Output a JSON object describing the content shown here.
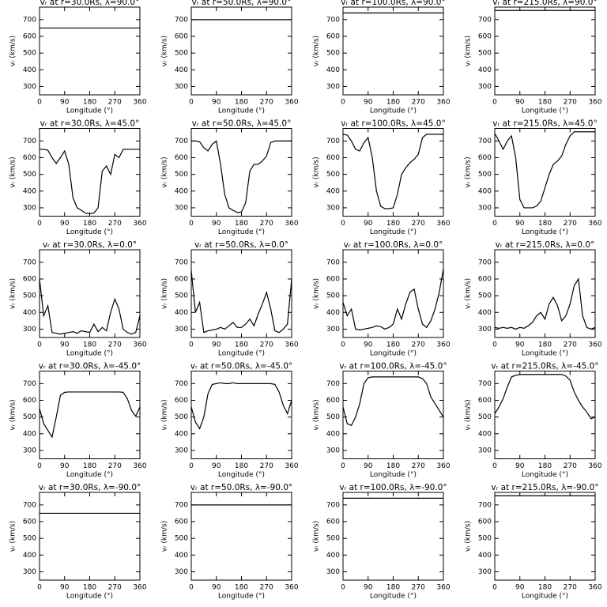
{
  "chart_data": [
    {
      "type": "line",
      "title": "vᵣ at r=30.0Rs, λ=90.0°",
      "x_label": "Longitude (°)",
      "y_label": "vᵣ (km/s)",
      "x": [
        0,
        360
      ],
      "values": [
        650,
        650
      ],
      "color": "#000000",
      "xlim": [
        0,
        360
      ],
      "ylim": [
        250,
        775
      ],
      "xticks": [
        0,
        90,
        180,
        270,
        360
      ],
      "yticks": [
        300,
        400,
        500,
        600,
        700
      ]
    },
    {
      "type": "line",
      "title": "vᵣ at r=50.0Rs, λ=90.0°",
      "x_label": "Longitude (°)",
      "y_label": "vᵣ (km/s)",
      "x": [
        0,
        360
      ],
      "values": [
        700,
        700
      ],
      "color": "#000000",
      "xlim": [
        0,
        360
      ],
      "ylim": [
        250,
        775
      ],
      "xticks": [
        0,
        90,
        180,
        270,
        360
      ],
      "yticks": [
        300,
        400,
        500,
        600,
        700
      ]
    },
    {
      "type": "line",
      "title": "vᵣ at r=100.0Rs, λ=90.0°",
      "x_label": "Longitude (°)",
      "y_label": "vᵣ (km/s)",
      "x": [
        0,
        360
      ],
      "values": [
        740,
        740
      ],
      "color": "#000000",
      "xlim": [
        0,
        360
      ],
      "ylim": [
        250,
        775
      ],
      "xticks": [
        0,
        90,
        180,
        270,
        360
      ],
      "yticks": [
        300,
        400,
        500,
        600,
        700
      ]
    },
    {
      "type": "line",
      "title": "vᵣ at r=215.0Rs, λ=90.0°",
      "x_label": "Longitude (°)",
      "y_label": "vᵣ (km/s)",
      "x": [
        0,
        360
      ],
      "values": [
        755,
        755
      ],
      "color": "#000000",
      "xlim": [
        0,
        360
      ],
      "ylim": [
        250,
        775
      ],
      "xticks": [
        0,
        90,
        180,
        270,
        360
      ],
      "yticks": [
        300,
        400,
        500,
        600,
        700
      ]
    },
    {
      "type": "line",
      "title": "vᵣ at r=30.0Rs, λ=45.0°",
      "x_label": "Longitude (°)",
      "y_label": "vᵣ (km/s)",
      "x": [
        0,
        15,
        30,
        45,
        60,
        75,
        90,
        105,
        120,
        135,
        150,
        165,
        180,
        195,
        210,
        225,
        240,
        255,
        270,
        285,
        300,
        315,
        330,
        345,
        360
      ],
      "values": [
        650,
        650,
        645,
        600,
        565,
        600,
        640,
        560,
        360,
        300,
        285,
        268,
        265,
        268,
        300,
        520,
        550,
        500,
        620,
        600,
        650,
        650,
        650,
        650,
        650
      ],
      "color": "#000000",
      "xlim": [
        0,
        360
      ],
      "ylim": [
        250,
        775
      ],
      "xticks": [
        0,
        90,
        180,
        270,
        360
      ],
      "yticks": [
        300,
        400,
        500,
        600,
        700
      ]
    },
    {
      "type": "line",
      "title": "vᵣ at r=50.0Rs, λ=45.0°",
      "x_label": "Longitude (°)",
      "y_label": "vᵣ (km/s)",
      "x": [
        0,
        15,
        30,
        45,
        60,
        75,
        90,
        105,
        120,
        135,
        150,
        165,
        180,
        195,
        210,
        225,
        240,
        255,
        270,
        285,
        300,
        315,
        330,
        345,
        360
      ],
      "values": [
        700,
        700,
        695,
        660,
        640,
        680,
        700,
        560,
        380,
        300,
        285,
        272,
        275,
        330,
        520,
        560,
        560,
        580,
        610,
        690,
        700,
        700,
        700,
        700,
        700
      ],
      "color": "#000000",
      "xlim": [
        0,
        360
      ],
      "ylim": [
        250,
        775
      ],
      "xticks": [
        0,
        90,
        180,
        270,
        360
      ],
      "yticks": [
        300,
        400,
        500,
        600,
        700
      ]
    },
    {
      "type": "line",
      "title": "vᵣ at r=100.0Rs, λ=45.0°",
      "x_label": "Longitude (°)",
      "y_label": "vᵣ (km/s)",
      "x": [
        0,
        15,
        30,
        45,
        60,
        75,
        90,
        105,
        120,
        135,
        150,
        165,
        180,
        195,
        210,
        225,
        240,
        255,
        270,
        285,
        300,
        315,
        330,
        345,
        360
      ],
      "values": [
        740,
        735,
        700,
        650,
        640,
        690,
        720,
        600,
        400,
        310,
        295,
        295,
        300,
        380,
        500,
        540,
        570,
        590,
        620,
        720,
        740,
        740,
        740,
        740,
        740
      ],
      "color": "#000000",
      "xlim": [
        0,
        360
      ],
      "ylim": [
        250,
        775
      ],
      "xticks": [
        0,
        90,
        180,
        270,
        360
      ],
      "yticks": [
        300,
        400,
        500,
        600,
        700
      ]
    },
    {
      "type": "line",
      "title": "vᵣ at r=215.0Rs, λ=45.0°",
      "x_label": "Longitude (°)",
      "y_label": "vᵣ (km/s)",
      "x": [
        0,
        15,
        30,
        45,
        60,
        75,
        90,
        105,
        120,
        135,
        150,
        165,
        180,
        195,
        210,
        225,
        240,
        255,
        270,
        285,
        300,
        315,
        330,
        345,
        360
      ],
      "values": [
        745,
        700,
        650,
        700,
        730,
        600,
        350,
        300,
        300,
        300,
        310,
        340,
        420,
        500,
        560,
        580,
        610,
        680,
        730,
        755,
        755,
        755,
        755,
        755,
        755
      ],
      "color": "#000000",
      "xlim": [
        0,
        360
      ],
      "ylim": [
        250,
        775
      ],
      "xticks": [
        0,
        90,
        180,
        270,
        360
      ],
      "yticks": [
        300,
        400,
        500,
        600,
        700
      ]
    },
    {
      "type": "line",
      "title": "vᵣ at r=30.0Rs, λ=0.0°",
      "x_label": "Longitude (°)",
      "y_label": "vᵣ (km/s)",
      "x": [
        0,
        15,
        30,
        45,
        60,
        75,
        90,
        105,
        120,
        135,
        150,
        165,
        180,
        195,
        210,
        225,
        240,
        255,
        270,
        285,
        300,
        315,
        330,
        345,
        360
      ],
      "values": [
        600,
        380,
        440,
        280,
        275,
        270,
        275,
        280,
        285,
        275,
        290,
        285,
        280,
        330,
        285,
        310,
        290,
        400,
        480,
        420,
        300,
        280,
        270,
        280,
        380
      ],
      "color": "#000000",
      "xlim": [
        0,
        360
      ],
      "ylim": [
        250,
        775
      ],
      "xticks": [
        0,
        90,
        180,
        270,
        360
      ],
      "yticks": [
        300,
        400,
        500,
        600,
        700
      ]
    },
    {
      "type": "line",
      "title": "vᵣ at r=50.0Rs, λ=0.0°",
      "x_label": "Longitude (°)",
      "y_label": "vᵣ (km/s)",
      "x": [
        0,
        15,
        30,
        45,
        60,
        75,
        90,
        105,
        120,
        135,
        150,
        165,
        180,
        195,
        210,
        225,
        240,
        255,
        270,
        285,
        300,
        315,
        330,
        345,
        360
      ],
      "values": [
        650,
        400,
        460,
        280,
        290,
        295,
        300,
        310,
        300,
        320,
        340,
        310,
        310,
        330,
        360,
        320,
        390,
        450,
        520,
        420,
        290,
        280,
        300,
        330,
        600
      ],
      "color": "#000000",
      "xlim": [
        0,
        360
      ],
      "ylim": [
        250,
        775
      ],
      "xticks": [
        0,
        90,
        180,
        270,
        360
      ],
      "yticks": [
        300,
        400,
        500,
        600,
        700
      ]
    },
    {
      "type": "line",
      "title": "vᵣ at r=100.0Rs, λ=0.0°",
      "x_label": "Longitude (°)",
      "y_label": "vᵣ (km/s)",
      "x": [
        0,
        15,
        30,
        45,
        60,
        75,
        90,
        105,
        120,
        135,
        150,
        165,
        180,
        195,
        210,
        225,
        240,
        255,
        270,
        285,
        300,
        315,
        330,
        345,
        360
      ],
      "values": [
        460,
        380,
        420,
        300,
        295,
        300,
        305,
        310,
        320,
        315,
        300,
        310,
        330,
        420,
        360,
        450,
        520,
        540,
        420,
        330,
        310,
        350,
        420,
        520,
        660
      ],
      "color": "#000000",
      "xlim": [
        0,
        360
      ],
      "ylim": [
        250,
        775
      ],
      "xticks": [
        0,
        90,
        180,
        270,
        360
      ],
      "yticks": [
        300,
        400,
        500,
        600,
        700
      ]
    },
    {
      "type": "line",
      "title": "vᵣ at r=215.0Rs, λ=0.0°",
      "x_label": "Longitude (°)",
      "y_label": "vᵣ (km/s)",
      "x": [
        0,
        15,
        30,
        45,
        60,
        75,
        90,
        105,
        120,
        135,
        150,
        165,
        180,
        195,
        210,
        225,
        240,
        255,
        270,
        285,
        300,
        315,
        330,
        345,
        360
      ],
      "values": [
        310,
        305,
        310,
        305,
        310,
        300,
        310,
        305,
        320,
        340,
        380,
        400,
        360,
        450,
        490,
        440,
        350,
        380,
        450,
        560,
        600,
        380,
        310,
        300,
        310
      ],
      "color": "#000000",
      "xlim": [
        0,
        360
      ],
      "ylim": [
        250,
        775
      ],
      "xticks": [
        0,
        90,
        180,
        270,
        360
      ],
      "yticks": [
        300,
        400,
        500,
        600,
        700
      ]
    },
    {
      "type": "line",
      "title": "vᵣ at r=30.0Rs, λ=-45.0°",
      "x_label": "Longitude (°)",
      "y_label": "vᵣ (km/s)",
      "x": [
        0,
        15,
        30,
        45,
        60,
        75,
        90,
        105,
        120,
        135,
        150,
        165,
        180,
        195,
        210,
        225,
        240,
        255,
        270,
        285,
        300,
        315,
        330,
        345,
        360
      ],
      "values": [
        550,
        460,
        420,
        380,
        500,
        630,
        648,
        650,
        650,
        650,
        650,
        650,
        650,
        650,
        650,
        650,
        650,
        650,
        650,
        650,
        648,
        610,
        540,
        505,
        560
      ],
      "color": "#000000",
      "xlim": [
        0,
        360
      ],
      "ylim": [
        250,
        775
      ],
      "xticks": [
        0,
        90,
        180,
        270,
        360
      ],
      "yticks": [
        300,
        400,
        500,
        600,
        700
      ]
    },
    {
      "type": "line",
      "title": "vᵣ at r=50.0Rs, λ=-45.0°",
      "x_label": "Longitude (°)",
      "y_label": "vᵣ (km/s)",
      "x": [
        0,
        15,
        30,
        45,
        60,
        75,
        90,
        105,
        120,
        135,
        150,
        165,
        180,
        195,
        210,
        225,
        240,
        255,
        270,
        285,
        300,
        315,
        330,
        345,
        360
      ],
      "values": [
        560,
        470,
        430,
        500,
        640,
        695,
        700,
        705,
        700,
        700,
        705,
        700,
        700,
        700,
        700,
        700,
        700,
        700,
        700,
        700,
        695,
        650,
        570,
        520,
        600
      ],
      "color": "#000000",
      "xlim": [
        0,
        360
      ],
      "ylim": [
        250,
        775
      ],
      "xticks": [
        0,
        90,
        180,
        270,
        360
      ],
      "yticks": [
        300,
        400,
        500,
        600,
        700
      ]
    },
    {
      "type": "line",
      "title": "vᵣ at r=100.0Rs, λ=-45.0°",
      "x_label": "Longitude (°)",
      "y_label": "vᵣ (km/s)",
      "x": [
        0,
        15,
        30,
        45,
        60,
        75,
        90,
        105,
        120,
        135,
        150,
        165,
        180,
        195,
        210,
        225,
        240,
        255,
        270,
        285,
        300,
        315,
        330,
        345,
        360
      ],
      "values": [
        560,
        460,
        450,
        500,
        580,
        700,
        735,
        740,
        740,
        740,
        740,
        740,
        740,
        740,
        740,
        740,
        740,
        740,
        740,
        730,
        700,
        620,
        580,
        540,
        500
      ],
      "color": "#000000",
      "xlim": [
        0,
        360
      ],
      "ylim": [
        250,
        775
      ],
      "xticks": [
        0,
        90,
        180,
        270,
        360
      ],
      "yticks": [
        300,
        400,
        500,
        600,
        700
      ]
    },
    {
      "type": "line",
      "title": "vᵣ at r=215.0Rs, λ=-45.0°",
      "x_label": "Longitude (°)",
      "y_label": "vᵣ (km/s)",
      "x": [
        0,
        15,
        30,
        45,
        60,
        75,
        90,
        105,
        120,
        135,
        150,
        165,
        180,
        195,
        210,
        225,
        240,
        255,
        270,
        285,
        300,
        315,
        330,
        345,
        360
      ],
      "values": [
        520,
        560,
        610,
        680,
        740,
        750,
        755,
        755,
        755,
        755,
        755,
        755,
        755,
        755,
        755,
        755,
        755,
        745,
        720,
        650,
        600,
        560,
        530,
        490,
        500
      ],
      "color": "#000000",
      "xlim": [
        0,
        360
      ],
      "ylim": [
        250,
        775
      ],
      "xticks": [
        0,
        90,
        180,
        270,
        360
      ],
      "yticks": [
        300,
        400,
        500,
        600,
        700
      ]
    },
    {
      "type": "line",
      "title": "vᵣ at r=30.0Rs, λ=-90.0°",
      "x_label": "Longitude (°)",
      "y_label": "vᵣ (km/s)",
      "x": [
        0,
        360
      ],
      "values": [
        650,
        650
      ],
      "color": "#000000",
      "xlim": [
        0,
        360
      ],
      "ylim": [
        250,
        775
      ],
      "xticks": [
        0,
        90,
        180,
        270,
        360
      ],
      "yticks": [
        300,
        400,
        500,
        600,
        700
      ]
    },
    {
      "type": "line",
      "title": "vᵣ at r=50.0Rs, λ=-90.0°",
      "x_label": "Longitude (°)",
      "y_label": "vᵣ (km/s)",
      "x": [
        0,
        360
      ],
      "values": [
        700,
        700
      ],
      "color": "#000000",
      "xlim": [
        0,
        360
      ],
      "ylim": [
        250,
        775
      ],
      "xticks": [
        0,
        90,
        180,
        270,
        360
      ],
      "yticks": [
        300,
        400,
        500,
        600,
        700
      ]
    },
    {
      "type": "line",
      "title": "vᵣ at r=100.0Rs, λ=-90.0°",
      "x_label": "Longitude (°)",
      "y_label": "vᵣ (km/s)",
      "x": [
        0,
        360
      ],
      "values": [
        740,
        740
      ],
      "color": "#000000",
      "xlim": [
        0,
        360
      ],
      "ylim": [
        250,
        775
      ],
      "xticks": [
        0,
        90,
        180,
        270,
        360
      ],
      "yticks": [
        300,
        400,
        500,
        600,
        700
      ]
    },
    {
      "type": "line",
      "title": "vᵣ at r=215.0Rs, λ=-90.0°",
      "x_label": "Longitude (°)",
      "y_label": "vᵣ (km/s)",
      "x": [
        0,
        360
      ],
      "values": [
        755,
        755
      ],
      "color": "#000000",
      "xlim": [
        0,
        360
      ],
      "ylim": [
        250,
        775
      ],
      "xticks": [
        0,
        90,
        180,
        270,
        360
      ],
      "yticks": [
        300,
        400,
        500,
        600,
        700
      ]
    }
  ]
}
